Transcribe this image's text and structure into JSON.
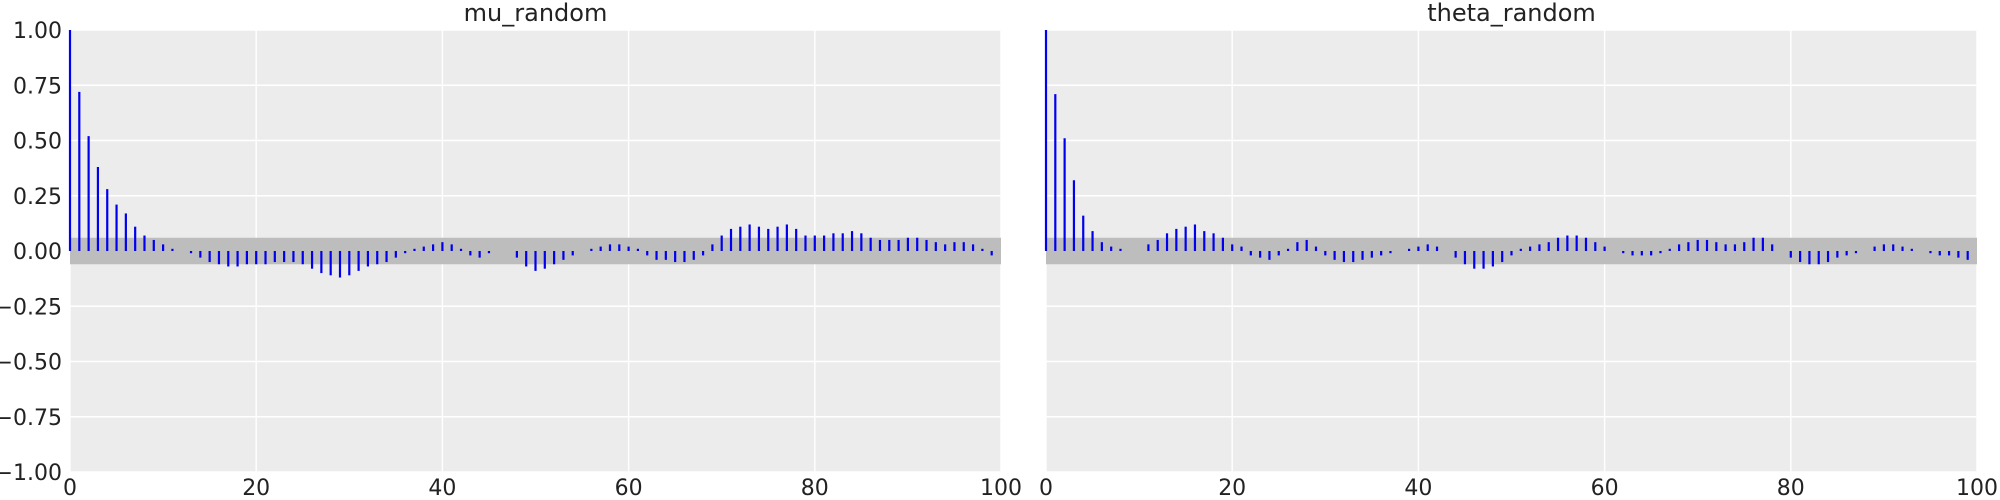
{
  "chart_data": [
    {
      "type": "bar",
      "title": "mu_random",
      "xlabel": "",
      "ylabel": "",
      "xlim": [
        0,
        100
      ],
      "ylim": [
        -1.0,
        1.0
      ],
      "x_ticks": [
        0,
        20,
        40,
        60,
        80,
        100
      ],
      "y_ticks": [
        -1.0,
        -0.75,
        -0.5,
        -0.25,
        0.0,
        0.25,
        0.5,
        0.75,
        1.0
      ],
      "y_tick_labels": [
        "−1.00",
        "−0.75",
        "−0.50",
        "−0.25",
        "0.00",
        "0.25",
        "0.50",
        "0.75",
        "1.00"
      ],
      "grid": true,
      "confidence_band": [
        -0.06,
        0.06
      ],
      "lags": [
        0,
        1,
        2,
        3,
        4,
        5,
        6,
        7,
        8,
        9,
        10,
        11,
        12,
        13,
        14,
        15,
        16,
        17,
        18,
        19,
        20,
        21,
        22,
        23,
        24,
        25,
        26,
        27,
        28,
        29,
        30,
        31,
        32,
        33,
        34,
        35,
        36,
        37,
        38,
        39,
        40,
        41,
        42,
        43,
        44,
        45,
        46,
        47,
        48,
        49,
        50,
        51,
        52,
        53,
        54,
        55,
        56,
        57,
        58,
        59,
        60,
        61,
        62,
        63,
        64,
        65,
        66,
        67,
        68,
        69,
        70,
        71,
        72,
        73,
        74,
        75,
        76,
        77,
        78,
        79,
        80,
        81,
        82,
        83,
        84,
        85,
        86,
        87,
        88,
        89,
        90,
        91,
        92,
        93,
        94,
        95,
        96,
        97,
        98,
        99
      ],
      "values": [
        1.0,
        0.72,
        0.52,
        0.38,
        0.28,
        0.21,
        0.17,
        0.11,
        0.07,
        0.05,
        0.03,
        0.01,
        0.0,
        -0.01,
        -0.03,
        -0.05,
        -0.06,
        -0.07,
        -0.07,
        -0.06,
        -0.06,
        -0.06,
        -0.05,
        -0.05,
        -0.05,
        -0.06,
        -0.08,
        -0.1,
        -0.11,
        -0.12,
        -0.11,
        -0.09,
        -0.07,
        -0.06,
        -0.05,
        -0.03,
        -0.01,
        0.01,
        0.02,
        0.03,
        0.04,
        0.03,
        0.01,
        -0.02,
        -0.03,
        -0.01,
        0.0,
        0.0,
        -0.03,
        -0.07,
        -0.09,
        -0.08,
        -0.06,
        -0.04,
        -0.02,
        0.0,
        0.01,
        0.02,
        0.03,
        0.03,
        0.02,
        0.01,
        -0.02,
        -0.04,
        -0.04,
        -0.05,
        -0.05,
        -0.04,
        -0.02,
        0.03,
        0.07,
        0.1,
        0.11,
        0.12,
        0.11,
        0.1,
        0.11,
        0.12,
        0.1,
        0.07,
        0.07,
        0.07,
        0.08,
        0.08,
        0.09,
        0.08,
        0.06,
        0.05,
        0.05,
        0.05,
        0.06,
        0.06,
        0.05,
        0.04,
        0.03,
        0.04,
        0.04,
        0.03,
        0.01,
        -0.02
      ]
    },
    {
      "type": "bar",
      "title": "theta_random",
      "xlabel": "",
      "ylabel": "",
      "xlim": [
        0,
        100
      ],
      "ylim": [
        -1.0,
        1.0
      ],
      "x_ticks": [
        0,
        20,
        40,
        60,
        80,
        100
      ],
      "grid": true,
      "confidence_band": [
        -0.06,
        0.06
      ],
      "lags": [
        0,
        1,
        2,
        3,
        4,
        5,
        6,
        7,
        8,
        9,
        10,
        11,
        12,
        13,
        14,
        15,
        16,
        17,
        18,
        19,
        20,
        21,
        22,
        23,
        24,
        25,
        26,
        27,
        28,
        29,
        30,
        31,
        32,
        33,
        34,
        35,
        36,
        37,
        38,
        39,
        40,
        41,
        42,
        43,
        44,
        45,
        46,
        47,
        48,
        49,
        50,
        51,
        52,
        53,
        54,
        55,
        56,
        57,
        58,
        59,
        60,
        61,
        62,
        63,
        64,
        65,
        66,
        67,
        68,
        69,
        70,
        71,
        72,
        73,
        74,
        75,
        76,
        77,
        78,
        79,
        80,
        81,
        82,
        83,
        84,
        85,
        86,
        87,
        88,
        89,
        90,
        91,
        92,
        93,
        94,
        95,
        96,
        97,
        98,
        99
      ],
      "values": [
        1.0,
        0.71,
        0.51,
        0.32,
        0.16,
        0.09,
        0.04,
        0.02,
        0.01,
        0.0,
        0.0,
        0.03,
        0.05,
        0.08,
        0.1,
        0.11,
        0.12,
        0.09,
        0.08,
        0.06,
        0.03,
        0.02,
        -0.02,
        -0.03,
        -0.04,
        -0.02,
        0.01,
        0.04,
        0.05,
        0.02,
        -0.02,
        -0.04,
        -0.05,
        -0.05,
        -0.04,
        -0.03,
        -0.02,
        -0.01,
        0.0,
        0.01,
        0.02,
        0.03,
        0.02,
        0.0,
        -0.03,
        -0.06,
        -0.08,
        -0.08,
        -0.07,
        -0.05,
        -0.02,
        0.01,
        0.02,
        0.03,
        0.04,
        0.06,
        0.07,
        0.07,
        0.06,
        0.04,
        0.02,
        0.0,
        -0.01,
        -0.02,
        -0.02,
        -0.02,
        -0.01,
        0.01,
        0.03,
        0.04,
        0.05,
        0.05,
        0.04,
        0.03,
        0.03,
        0.04,
        0.06,
        0.06,
        0.03,
        0.0,
        -0.03,
        -0.05,
        -0.06,
        -0.06,
        -0.05,
        -0.03,
        -0.02,
        -0.01,
        0.0,
        0.02,
        0.03,
        0.03,
        0.02,
        0.01,
        0.0,
        -0.01,
        -0.02,
        -0.02,
        -0.03,
        -0.04
      ]
    }
  ]
}
